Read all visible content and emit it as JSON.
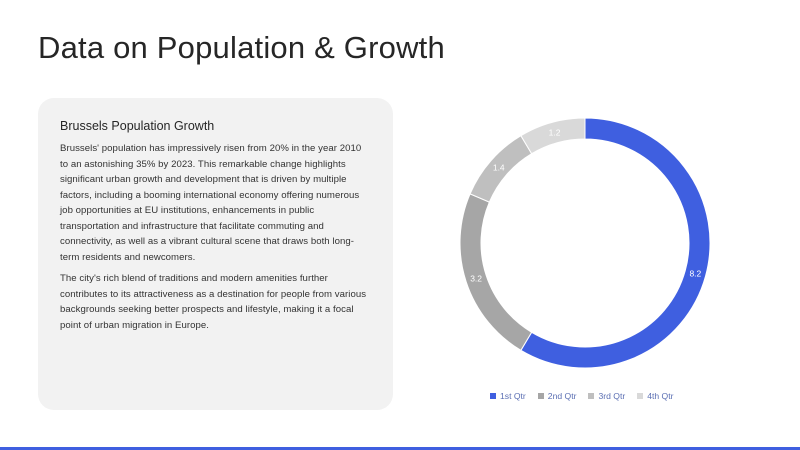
{
  "slide": {
    "title": "Data on Population & Growth"
  },
  "card": {
    "heading": "Brussels Population Growth",
    "paragraph1": "Brussels' population has impressively risen from 20% in the year 2010 to an astonishing 35% by 2023. This remarkable change highlights significant urban growth and development that is driven by multiple factors, including a booming international economy offering numerous job opportunities at EU institutions, enhancements in public transportation and infrastructure that facilitate commuting and connectivity, as well as a vibrant cultural scene that draws both long-term residents and newcomers.",
    "paragraph2": "The city's rich blend of traditions and modern amenities further contributes to its attractiveness as a destination for people from various backgrounds seeking better prospects and lifestyle, making it a focal point of urban migration in Europe."
  },
  "chart_data": {
    "type": "pie",
    "subtype": "doughnut",
    "categories": [
      "1st Qtr",
      "2nd Qtr",
      "3rd Qtr",
      "4th Qtr"
    ],
    "values": [
      8.2,
      3.2,
      1.4,
      1.2
    ],
    "colors": [
      "#3f5fe0",
      "#a6a6a6",
      "#bfbfbf",
      "#d9d9d9"
    ],
    "label_colors": [
      "#ffffff",
      "#ffffff",
      "#ffffff",
      "#ffffff"
    ],
    "legend_position": "bottom",
    "legend_text_color": "#5b6fb3"
  },
  "theme": {
    "accent": "#3f5fe0",
    "card_background": "#f2f2f2"
  }
}
